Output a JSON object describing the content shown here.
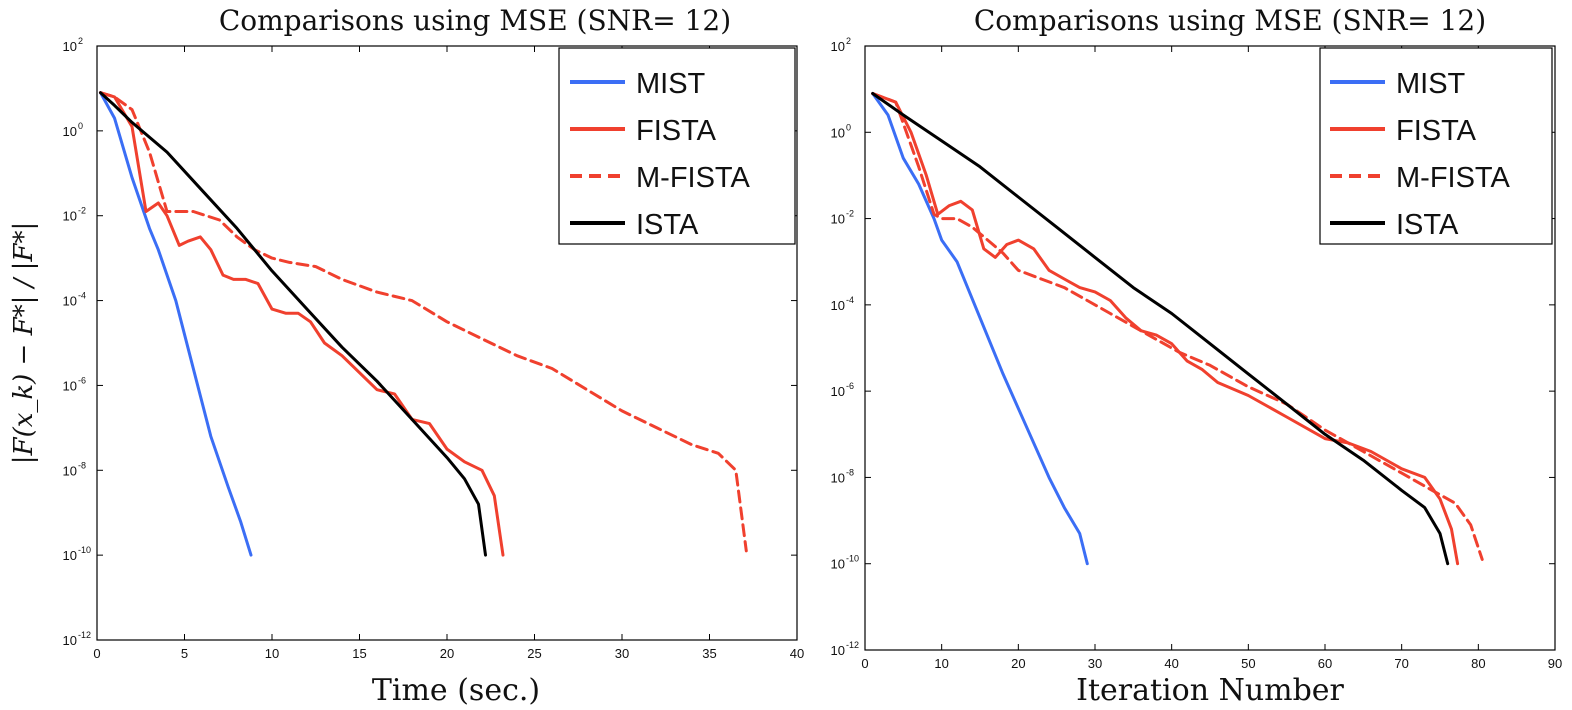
{
  "colors": {
    "MIST": "#3b6ef5",
    "FISTA": "#f0402e",
    "M-FISTA": "#f0402e",
    "ISTA": "#000000"
  },
  "y_axis_label": "|F(x_k) − F*| / |F*|",
  "chart_data": [
    {
      "type": "line",
      "title": "Comparisons using MSE (SNR= 12)",
      "xlabel": "Time (sec.)",
      "ylabel": "|F(x_k) − F*| / |F*|",
      "xlim": [
        0,
        40
      ],
      "ylim_log10": [
        -12,
        2
      ],
      "y_scale": "log",
      "x_ticks": [
        "0",
        "5",
        "10",
        "15",
        "20",
        "25",
        "30",
        "35",
        "40"
      ],
      "x_tick_values": [
        0,
        5,
        10,
        15,
        20,
        25,
        30,
        35,
        40
      ],
      "y_tick_base": "10",
      "y_tick_exponents": [
        "2",
        "0",
        "-2",
        "-4",
        "-6",
        "-8",
        "-10",
        "-12"
      ],
      "legend": {
        "position": "top-right",
        "entries": [
          "MIST",
          "FISTA",
          "M-FISTA",
          "ISTA"
        ]
      },
      "series": [
        {
          "name": "MIST",
          "style": "solid",
          "x": [
            0.2,
            1.0,
            2.0,
            3.0,
            3.5,
            4.5,
            5.5,
            6.5,
            7.5,
            8.2,
            8.8
          ],
          "log10_y": [
            0.9,
            0.3,
            -1.1,
            -2.3,
            -2.8,
            -4.0,
            -5.6,
            -7.2,
            -8.4,
            -9.2,
            -10.0
          ]
        },
        {
          "name": "FISTA",
          "style": "solid",
          "x": [
            0.2,
            1.0,
            2.0,
            2.8,
            3.5,
            4.0,
            4.7,
            5.2,
            5.9,
            6.5,
            7.2,
            7.8,
            8.5,
            9.2,
            10.0,
            10.8,
            11.5,
            12.2,
            13.0,
            14.0,
            15.0,
            16.0,
            17.0,
            18.0,
            19.0,
            20.0,
            21.0,
            22.0,
            22.7,
            23.2
          ],
          "log10_y": [
            0.9,
            0.8,
            0.1,
            -1.9,
            -1.7,
            -2.0,
            -2.7,
            -2.6,
            -2.5,
            -2.8,
            -3.4,
            -3.5,
            -3.5,
            -3.6,
            -4.2,
            -4.3,
            -4.3,
            -4.5,
            -5.0,
            -5.3,
            -5.7,
            -6.1,
            -6.2,
            -6.8,
            -6.9,
            -7.5,
            -7.8,
            -8.0,
            -8.6,
            -10.0
          ]
        },
        {
          "name": "M-FISTA",
          "style": "dashed",
          "x": [
            0.2,
            1.0,
            2.0,
            3.0,
            4.0,
            5.5,
            7.0,
            8.0,
            9.0,
            10.0,
            11.0,
            12.5,
            14.0,
            16.0,
            18.0,
            20.0,
            22.0,
            24.0,
            26.0,
            28.0,
            30.0,
            32.0,
            34.0,
            35.5,
            36.5,
            37.1
          ],
          "log10_y": [
            0.9,
            0.8,
            0.5,
            -0.5,
            -1.9,
            -1.9,
            -2.1,
            -2.5,
            -2.8,
            -3.0,
            -3.1,
            -3.2,
            -3.5,
            -3.8,
            -4.0,
            -4.5,
            -4.9,
            -5.3,
            -5.6,
            -6.1,
            -6.6,
            -7.0,
            -7.4,
            -7.6,
            -8.0,
            -9.9
          ]
        },
        {
          "name": "ISTA",
          "style": "solid",
          "x": [
            0.2,
            1.0,
            2.0,
            4.0,
            6.0,
            8.0,
            10.0,
            12.0,
            14.0,
            16.0,
            18.0,
            20.0,
            21.0,
            21.8,
            22.2
          ],
          "log10_y": [
            0.9,
            0.6,
            0.2,
            -0.5,
            -1.4,
            -2.3,
            -3.3,
            -4.2,
            -5.1,
            -5.9,
            -6.8,
            -7.7,
            -8.2,
            -8.8,
            -10.0
          ]
        }
      ]
    },
    {
      "type": "line",
      "title": "Comparisons using MSE (SNR= 12)",
      "xlabel": "Iteration Number",
      "ylabel": "",
      "xlim": [
        0,
        90
      ],
      "ylim_log10": [
        -12,
        2
      ],
      "y_scale": "log",
      "x_ticks": [
        "0",
        "10",
        "20",
        "30",
        "40",
        "50",
        "60",
        "70",
        "80",
        "90"
      ],
      "x_tick_values": [
        0,
        10,
        20,
        30,
        40,
        50,
        60,
        70,
        80,
        90
      ],
      "y_tick_base": "10",
      "y_tick_exponents": [
        "2",
        "0",
        "-2",
        "-4",
        "-6",
        "-8",
        "-10",
        "-12"
      ],
      "legend": {
        "position": "top-right",
        "entries": [
          "MIST",
          "FISTA",
          "M-FISTA",
          "ISTA"
        ]
      },
      "series": [
        {
          "name": "MIST",
          "style": "solid",
          "x": [
            1,
            3,
            5,
            7,
            9,
            10,
            12,
            15,
            18,
            21,
            24,
            26,
            28,
            29
          ],
          "log10_y": [
            0.9,
            0.4,
            -0.6,
            -1.2,
            -2.0,
            -2.5,
            -3.0,
            -4.3,
            -5.6,
            -6.8,
            -8.0,
            -8.7,
            -9.3,
            -10.0
          ]
        },
        {
          "name": "FISTA",
          "style": "solid",
          "x": [
            1,
            4,
            6,
            8,
            9.5,
            11,
            12.5,
            14,
            15.5,
            17,
            18.5,
            20,
            22,
            24,
            26,
            28,
            30,
            32,
            34,
            36,
            38,
            40,
            42,
            44,
            46,
            50,
            55,
            60,
            63,
            66,
            70,
            73,
            75,
            76.5,
            77.3
          ],
          "log10_y": [
            0.9,
            0.7,
            0.0,
            -1.0,
            -1.9,
            -1.7,
            -1.6,
            -1.8,
            -2.7,
            -2.9,
            -2.6,
            -2.5,
            -2.7,
            -3.2,
            -3.4,
            -3.6,
            -3.7,
            -3.9,
            -4.3,
            -4.6,
            -4.7,
            -4.9,
            -5.3,
            -5.5,
            -5.8,
            -6.1,
            -6.6,
            -7.1,
            -7.2,
            -7.4,
            -7.8,
            -8.0,
            -8.5,
            -9.2,
            -10.0
          ]
        },
        {
          "name": "M-FISTA",
          "style": "dashed",
          "x": [
            1,
            4,
            7,
            9,
            10,
            12,
            14,
            16,
            18,
            20,
            23,
            26,
            29,
            32,
            35,
            38,
            41,
            45,
            50,
            55,
            60,
            65,
            70,
            74,
            77,
            79,
            80.5
          ],
          "log10_y": [
            0.9,
            0.7,
            -0.8,
            -1.9,
            -2.0,
            -2.0,
            -2.2,
            -2.5,
            -2.8,
            -3.2,
            -3.4,
            -3.6,
            -3.9,
            -4.2,
            -4.5,
            -4.8,
            -5.1,
            -5.4,
            -5.9,
            -6.3,
            -6.9,
            -7.4,
            -7.9,
            -8.3,
            -8.6,
            -9.1,
            -9.9
          ]
        },
        {
          "name": "ISTA",
          "style": "solid",
          "x": [
            1,
            5,
            10,
            15,
            20,
            25,
            30,
            35,
            40,
            45,
            50,
            55,
            60,
            65,
            70,
            73,
            75,
            76
          ],
          "log10_y": [
            0.9,
            0.4,
            -0.2,
            -0.8,
            -1.5,
            -2.2,
            -2.9,
            -3.6,
            -4.2,
            -4.9,
            -5.6,
            -6.3,
            -7.0,
            -7.6,
            -8.3,
            -8.7,
            -9.3,
            -10.0
          ]
        }
      ]
    }
  ]
}
